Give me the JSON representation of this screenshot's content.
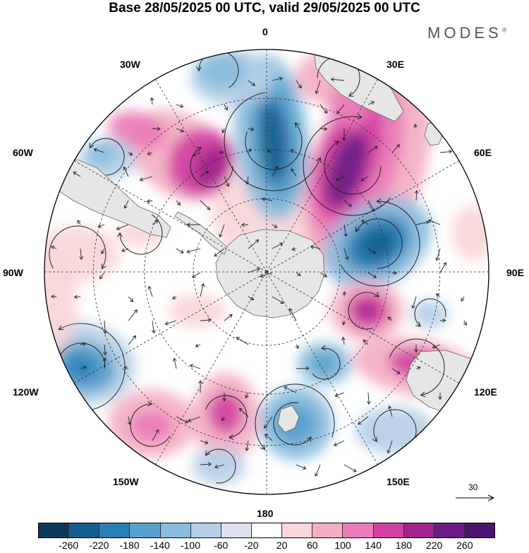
{
  "header": {
    "title": "Base 28/05/2025 00 UTC, valid 29/05/2025 00 UTC",
    "brand": "MODES",
    "brand_mark": "®"
  },
  "map": {
    "projection": "polar-stereographic-south",
    "land_color": "#e6e6e6",
    "longitude_labels": [
      {
        "id": "lon-0",
        "text": "0"
      },
      {
        "id": "lon-30e",
        "text": "30E"
      },
      {
        "id": "lon-60e",
        "text": "60E"
      },
      {
        "id": "lon-90e",
        "text": "90E"
      },
      {
        "id": "lon-120e",
        "text": "120E"
      },
      {
        "id": "lon-150e",
        "text": "150E"
      },
      {
        "id": "lon-180",
        "text": "180"
      },
      {
        "id": "lon-150w",
        "text": "150W"
      },
      {
        "id": "lon-120w",
        "text": "120W"
      },
      {
        "id": "lon-90w",
        "text": "90W"
      },
      {
        "id": "lon-60w",
        "text": "60W"
      },
      {
        "id": "lon-30w",
        "text": "30W"
      }
    ],
    "reference_vector": {
      "label": "30"
    }
  },
  "colorbar": {
    "labels": [
      "-260",
      "-220",
      "-180",
      "-140",
      "-100",
      "-60",
      "-20",
      "20",
      "60",
      "100",
      "140",
      "180",
      "220",
      "260"
    ],
    "colors": [
      "#0c3a5b",
      "#155f8f",
      "#2a7fb4",
      "#579fcb",
      "#89bcdc",
      "#b5cfe6",
      "#dde2ee",
      "#ffffff",
      "#f9d6d9",
      "#f3aec3",
      "#ea7cb8",
      "#d1409f",
      "#a0248c",
      "#6a1d85",
      "#4a1470"
    ]
  }
}
